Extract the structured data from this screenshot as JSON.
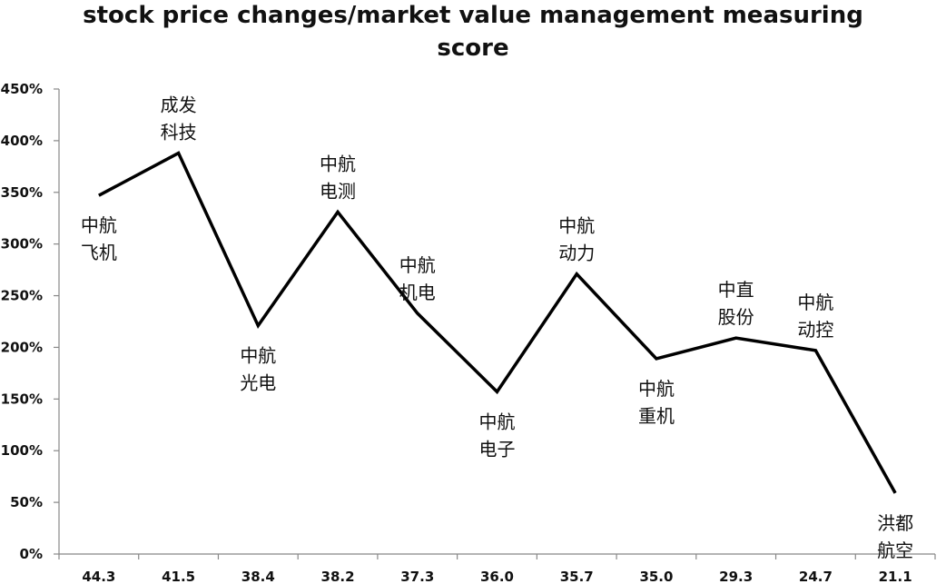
{
  "chart_data": {
    "type": "line",
    "title_lines": [
      "stock price changes/market value management measuring",
      "score"
    ],
    "x": [
      "44.3",
      "41.5",
      "38.4",
      "38.2",
      "37.3",
      "36.0",
      "35.7",
      "35.0",
      "29.3",
      "24.7",
      "21.1"
    ],
    "series": [
      {
        "values": [
          347,
          388,
          221,
          331,
          233,
          157,
          271,
          189,
          209,
          197,
          59
        ],
        "point_labels": [
          [
            "中航",
            "飞机"
          ],
          [
            "成发",
            "科技"
          ],
          [
            "中航",
            "光电"
          ],
          [
            "中航",
            "电测"
          ],
          [
            "中航",
            "机电"
          ],
          [
            "中航",
            "电子"
          ],
          [
            "中航",
            "动力"
          ],
          [
            "中航",
            "重机"
          ],
          [
            "中直",
            "股份"
          ],
          [
            "中航",
            "动控"
          ],
          [
            "洪都",
            "航空"
          ]
        ],
        "label_positions": [
          "below",
          "above",
          "below",
          "above",
          "above",
          "below",
          "above",
          "below",
          "above",
          "above",
          "below"
        ]
      }
    ],
    "y_tick_labels": [
      "0%",
      "50%",
      "100%",
      "150%",
      "200%",
      "250%",
      "300%",
      "350%",
      "400%",
      "450%"
    ],
    "ylim": [
      0,
      450
    ],
    "grid": false,
    "line_color": "#000000"
  }
}
